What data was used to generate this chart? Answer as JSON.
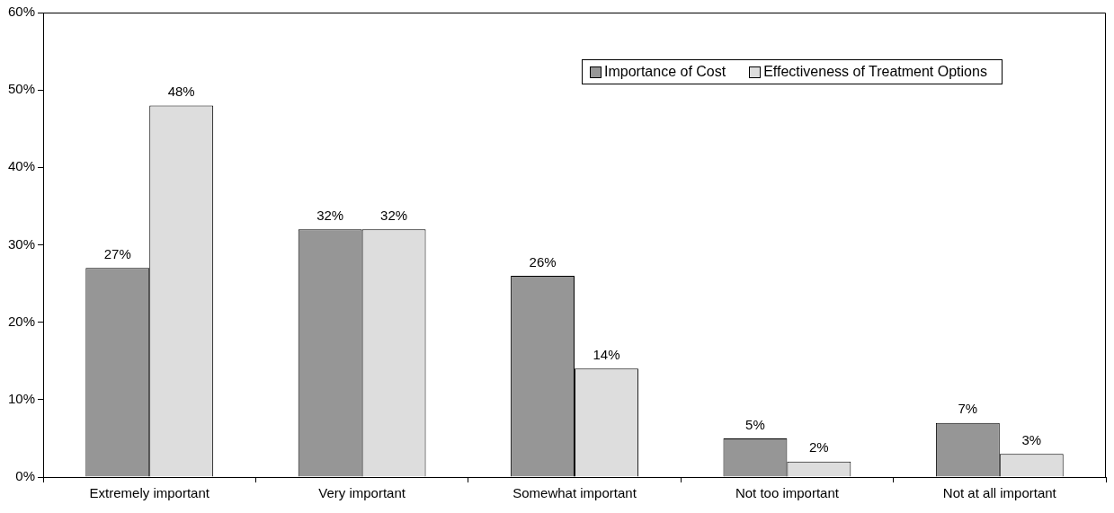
{
  "chart_data": {
    "type": "bar",
    "categories": [
      "Extremely important",
      "Very important",
      "Somewhat important",
      "Not too important",
      "Not at all important"
    ],
    "series": [
      {
        "name": "Importance of Cost",
        "color": "#969696",
        "values": [
          27,
          32,
          26,
          5,
          7
        ],
        "value_labels": [
          "27%",
          "32%",
          "26%",
          "5%",
          "7%"
        ]
      },
      {
        "name": "Effectiveness of Treatment Options",
        "color": "#dddddd",
        "values": [
          48,
          32,
          14,
          2,
          3
        ],
        "value_labels": [
          "48%",
          "32%",
          "14%",
          "2%",
          "3%"
        ]
      }
    ],
    "ylim": [
      0,
      60
    ],
    "yticks": [
      {
        "value": 0,
        "label": "0%"
      },
      {
        "value": 10,
        "label": "10%"
      },
      {
        "value": 20,
        "label": "20%"
      },
      {
        "value": 30,
        "label": "30%"
      },
      {
        "value": 40,
        "label": "40%"
      },
      {
        "value": 50,
        "label": "50%"
      },
      {
        "value": 60,
        "label": "60%"
      }
    ],
    "grid": false,
    "legend": "top right"
  }
}
